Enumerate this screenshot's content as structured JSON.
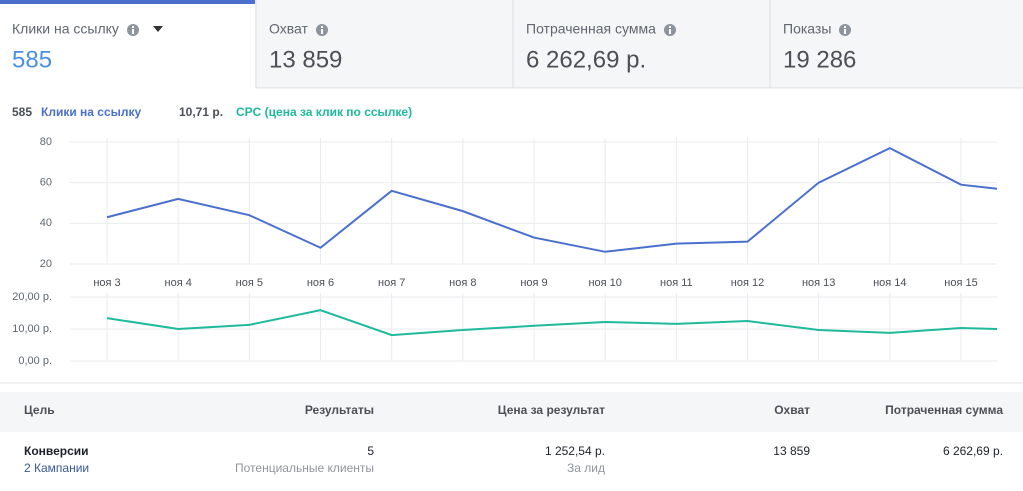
{
  "tabs": [
    {
      "label": "Клики на ссылку",
      "value": "585"
    },
    {
      "label": "Охват",
      "value": "13 859"
    },
    {
      "label": "Потраченная сумма",
      "value": "6 262,69 р."
    },
    {
      "label": "Показы",
      "value": "19 286"
    }
  ],
  "summary": [
    {
      "value": "585",
      "label": "Клики на ссылку",
      "color": "#4a6fcf"
    },
    {
      "value": "10,71 р.",
      "label": "CPC (цена за клик по ссылке)",
      "color": "#1fb99b"
    }
  ],
  "chart_data": [
    {
      "type": "line",
      "categories": [
        "ноя 3",
        "ноя 4",
        "ноя 5",
        "ноя 6",
        "ноя 7",
        "ноя 8",
        "ноя 9",
        "ноя 10",
        "ноя 11",
        "ноя 12",
        "ноя 13",
        "ноя 14",
        "ноя 15",
        null
      ],
      "series": [
        {
          "name": "Клики на ссылку",
          "color": "#4a6fcf",
          "values": [
            43,
            52,
            44,
            28,
            56,
            46,
            33,
            26,
            30,
            31,
            60,
            77,
            59,
            57
          ]
        }
      ],
      "ylim": [
        20,
        80
      ],
      "yticks": [
        20,
        40,
        60,
        80
      ],
      "grid": true
    },
    {
      "type": "line",
      "categories": [
        "ноя 3",
        "ноя 4",
        "ноя 5",
        "ноя 6",
        "ноя 7",
        "ноя 8",
        "ноя 9",
        "ноя 10",
        "ноя 11",
        "ноя 12",
        "ноя 13",
        "ноя 14",
        "ноя 15",
        null
      ],
      "series": [
        {
          "name": "CPC (цена за клик по ссылке)",
          "color": "#1fb99b",
          "values": [
            13.4,
            10.0,
            11.3,
            15.9,
            8.1,
            9.7,
            11.0,
            12.2,
            11.6,
            12.5,
            9.7,
            8.8,
            10.3,
            10.0
          ]
        }
      ],
      "ylim": [
        0,
        20
      ],
      "yticks": [
        {
          "value": 0,
          "label": "0,00 р."
        },
        {
          "value": 10,
          "label": "10,00 р."
        },
        {
          "value": 20,
          "label": "20,00 р."
        }
      ],
      "grid": true
    }
  ],
  "table": {
    "columns": [
      "Цель",
      "Результаты",
      "Цена за результат",
      "Охват",
      "Потраченная сумма"
    ],
    "rows": [
      [
        {
          "main": "Конверсии",
          "sub": "2 Кампании"
        },
        {
          "main": "5",
          "sub": "Потенциальные клиенты"
        },
        {
          "main": "1 252,54 р.",
          "sub": "За лид"
        },
        {
          "main": "13 859"
        },
        {
          "main": "6 262,69 р."
        }
      ]
    ]
  }
}
